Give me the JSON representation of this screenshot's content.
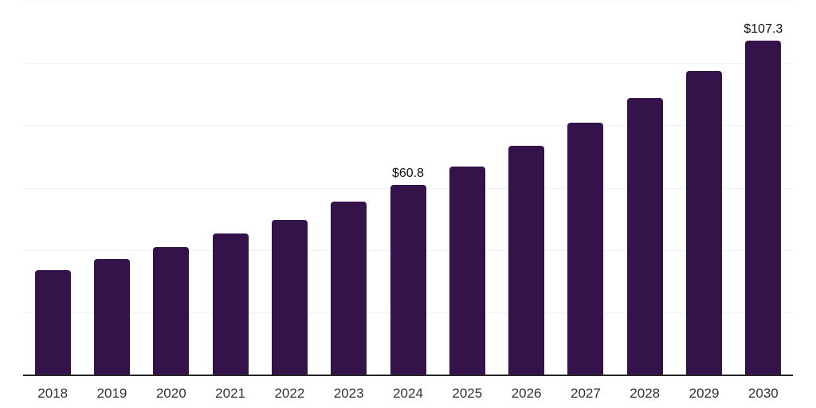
{
  "chart_data": {
    "type": "bar",
    "title": "",
    "xlabel": "",
    "ylabel": "",
    "categories": [
      "2018",
      "2019",
      "2020",
      "2021",
      "2022",
      "2023",
      "2024",
      "2025",
      "2026",
      "2027",
      "2028",
      "2029",
      "2030"
    ],
    "values": [
      33.5,
      37.1,
      40.9,
      45.2,
      49.7,
      55.4,
      60.8,
      66.8,
      73.4,
      80.9,
      88.8,
      97.5,
      107.3
    ],
    "data_labels": [
      "",
      "",
      "",
      "",
      "",
      "",
      "$60.8",
      "",
      "",
      "",
      "",
      "",
      "$107.3"
    ],
    "ylim": [
      0,
      120
    ],
    "grid_step": 20,
    "grid": "horizontal",
    "y_tick_labels_shown": false,
    "legend": "none",
    "colors": {
      "bar": "#34134b",
      "gridline": "#f2f2f2",
      "axis_line": "#252525",
      "tick_label": "#333333",
      "data_label": "#111111",
      "background": "#ffffff"
    }
  }
}
